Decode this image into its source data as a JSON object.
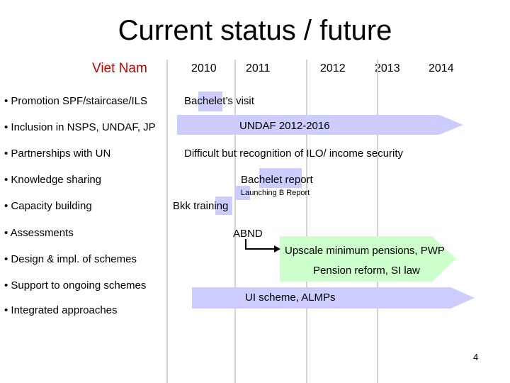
{
  "title": "Current status / future",
  "country": "Viet Nam",
  "years": [
    "2010",
    "2011",
    "2012",
    "2013",
    "2014"
  ],
  "bullets": [
    "• Promotion SPF/staircase/ILS",
    "• Inclusion in NSPS, UNDAF, JP",
    "• Partnerships with UN",
    "• Knowledge sharing",
    "• Capacity building",
    "• Assessments",
    "• Design & impl. of schemes",
    "• Support to ongoing schemes",
    "• Integrated approaches"
  ],
  "timeline": {
    "bachelet_visit": "Bachelet’s visit",
    "undaf": "UNDAF 2012-2016",
    "difficult": "Difficult but recognition of ILO/ income security",
    "bachelet_report": "Bachelet report",
    "launching": "Launching B Report",
    "bkk_training": "Bkk training",
    "abnd": "ABND",
    "upscale": "Upscale minimum pensions, PWP",
    "pension_reform": "Pension reform, SI law",
    "ui_scheme": "UI scheme, ALMPs"
  },
  "slide_number": "4",
  "colors": {
    "shape_fill": "#ccccff",
    "green_fill": "#ccffcc",
    "country": "#c00000",
    "gridline": "#d3d3d3"
  }
}
